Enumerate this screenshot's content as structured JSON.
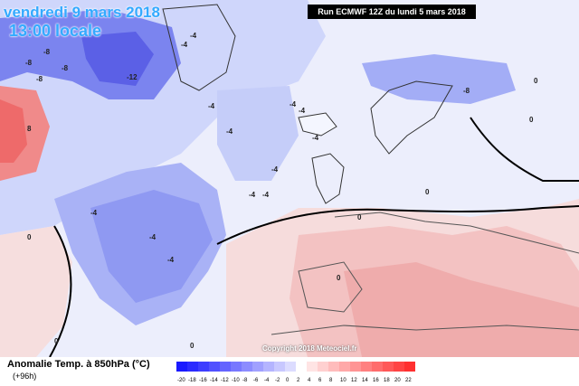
{
  "header": {
    "date": "vendredi 9 mars 2018",
    "time": "13:00 locale",
    "run": "Run ECMWF 12Z du lundi 5 mars 2018"
  },
  "copyright": "Copyright 2018 Meteociel.fr",
  "legend": {
    "title": "Anomalie Temp. à 850hPa (°C)",
    "subtitle": "(+96h)",
    "ticks": [
      "-20",
      "-18",
      "-16",
      "-14",
      "-12",
      "-10",
      "-8",
      "-6",
      "-4",
      "-2",
      "0",
      "2",
      "4",
      "6",
      "8",
      "10",
      "12",
      "14",
      "16",
      "18",
      "20",
      "22"
    ],
    "colors": [
      "#1a1aff",
      "#2b2bff",
      "#3d3dff",
      "#5050ff",
      "#6464ff",
      "#7878ff",
      "#8c8cff",
      "#a0a0ff",
      "#b4b4ff",
      "#c8c8ff",
      "#dcdcff",
      "#ffffff",
      "#ffe4e4",
      "#ffd0d0",
      "#ffbcbc",
      "#ffa8a8",
      "#ff9494",
      "#ff8080",
      "#ff6c6c",
      "#ff5858",
      "#ff4444",
      "#ff3030"
    ]
  },
  "map_labels": [
    "-8",
    "-8",
    "-8",
    "-8",
    "-4",
    "-4",
    "-12",
    "-4",
    "-4",
    "-4",
    "-4",
    "-4",
    "-4",
    "-4",
    "-4",
    "-8",
    "8",
    "0",
    "0",
    "0",
    "0",
    "0",
    "0",
    "0",
    "-4",
    "-4",
    "-4",
    "0"
  ],
  "colors": {
    "cold_strong": "#5b5bf0",
    "cold_mid": "#9aa6f5",
    "cold_light": "#d4dafc",
    "neutral": "#f4f4ff",
    "warm_light": "#f5d6d6",
    "warm_mid": "#f0a8a8",
    "warm_strong": "#f07070"
  }
}
